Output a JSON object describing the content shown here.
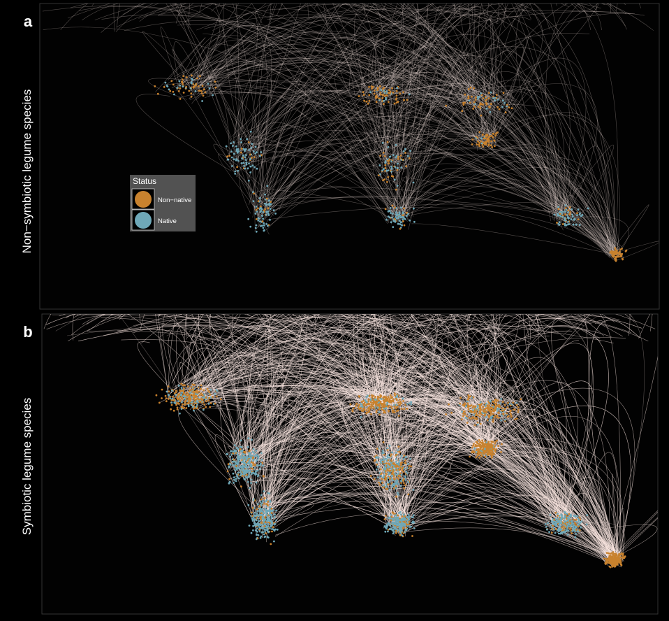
{
  "panels": [
    {
      "label": "a",
      "title": "Non−symbiotic legume species"
    },
    {
      "label": "b",
      "title": "Symbiotic legume species"
    }
  ],
  "legend": {
    "title": "Status",
    "items": [
      {
        "name": "Non−native",
        "color": "#c8822e"
      },
      {
        "name": "Native",
        "color": "#6fa8b8"
      }
    ]
  }
}
